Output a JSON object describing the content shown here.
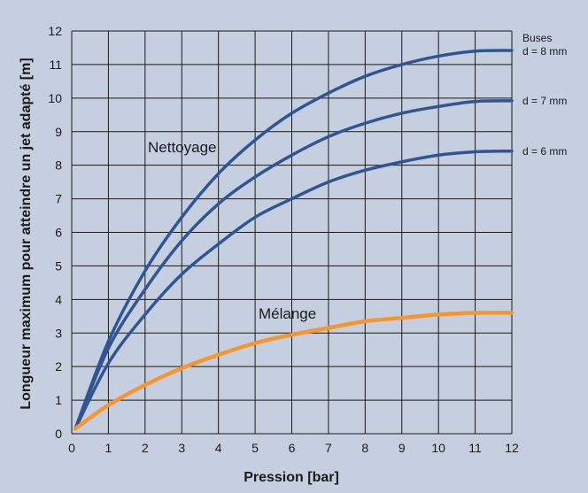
{
  "chart_data": {
    "type": "line",
    "xlabel": "Pression [bar]",
    "ylabel": "Longueur maximum pour atteindre un jet adapté [m]",
    "xlim": [
      0,
      12
    ],
    "ylim": [
      0,
      12
    ],
    "x_ticks": [
      "0",
      "1",
      "2",
      "3",
      "4",
      "5",
      "6",
      "7",
      "8",
      "9",
      "10",
      "11",
      "12"
    ],
    "y_ticks": [
      "0",
      "1",
      "2",
      "3",
      "4",
      "5",
      "6",
      "7",
      "8",
      "9",
      "10",
      "11",
      "12"
    ],
    "grid": true,
    "x": [
      0.1,
      1,
      2,
      3,
      4,
      5,
      6,
      7,
      8,
      9,
      10,
      11,
      12
    ],
    "series": [
      {
        "name": "d = 8 mm",
        "color": "#2f5592",
        "values": [
          0.15,
          2.75,
          4.85,
          6.45,
          7.75,
          8.75,
          9.55,
          10.15,
          10.65,
          11.0,
          11.25,
          11.4,
          11.42
        ]
      },
      {
        "name": "d = 7 mm",
        "color": "#2f5592",
        "values": [
          0.15,
          2.55,
          4.3,
          5.75,
          6.85,
          7.65,
          8.3,
          8.85,
          9.25,
          9.55,
          9.75,
          9.9,
          9.92
        ]
      },
      {
        "name": "d = 6 mm",
        "color": "#2f5592",
        "values": [
          0.15,
          2.1,
          3.55,
          4.75,
          5.65,
          6.45,
          7.0,
          7.5,
          7.85,
          8.1,
          8.3,
          8.4,
          8.42
        ]
      },
      {
        "name": "Mélange",
        "color": "#f7952e",
        "values": [
          0.15,
          0.85,
          1.45,
          1.95,
          2.35,
          2.7,
          2.95,
          3.15,
          3.35,
          3.45,
          3.55,
          3.6,
          3.6
        ]
      }
    ],
    "annotations": {
      "group_cleaning": "Nettoyage",
      "group_mixing": "Mélange",
      "nozzles_header": "Buses",
      "nozzle_labels": [
        "d = 8 mm",
        "d = 7 mm",
        "d = 6 mm"
      ]
    },
    "colors": {
      "background": "#c5cfe0",
      "plot_background": "#c5cfe0",
      "grid": "#1a1a1a",
      "cleaning": "#2f5592",
      "mixing": "#f7952e"
    }
  }
}
